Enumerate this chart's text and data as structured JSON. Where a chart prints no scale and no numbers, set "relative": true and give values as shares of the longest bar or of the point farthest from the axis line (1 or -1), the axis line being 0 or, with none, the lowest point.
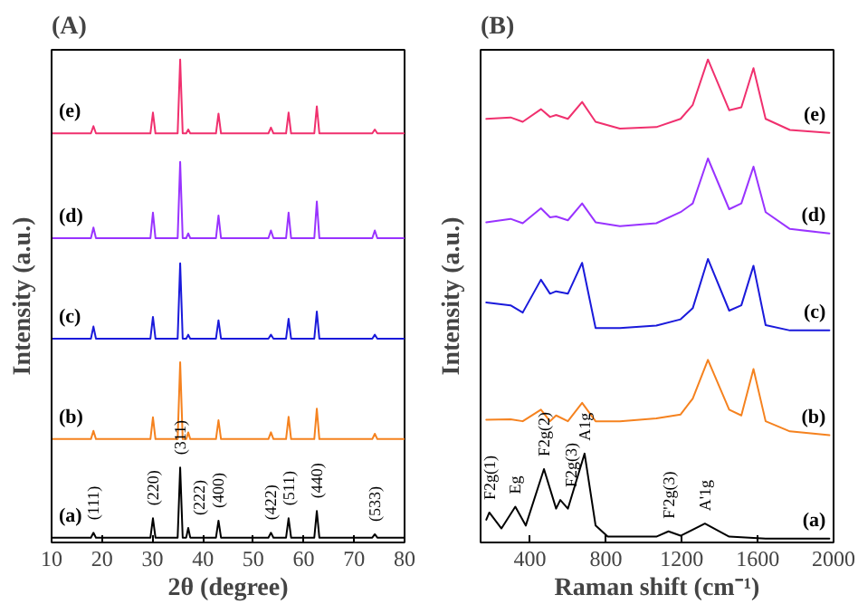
{
  "chart_data": [
    {
      "type": "line",
      "title": "(A)",
      "xlabel": "2θ (degree)",
      "ylabel": "Intensity (a.u.)",
      "relative": true,
      "xlim": [
        10,
        80
      ],
      "xticks": [
        10,
        20,
        30,
        40,
        50,
        60,
        70,
        80
      ],
      "grid": false,
      "legend": false,
      "marker": "none",
      "line_style": "solid",
      "x": [
        10,
        17.8,
        18.3,
        18.8,
        29.6,
        30.1,
        30.6,
        35,
        35.5,
        36,
        36.7,
        37.1,
        37.5,
        42.6,
        43.1,
        43.6,
        53,
        53.5,
        54,
        56.5,
        57,
        57.5,
        62.1,
        62.6,
        63.1,
        73.6,
        74.1,
        74.6,
        80
      ],
      "series": [
        {
          "name": "(a)",
          "color": "#000000",
          "values": [
            0.01,
            0.01,
            0.02,
            0.01,
            0.01,
            0.05,
            0.01,
            0.01,
            0.155,
            0.01,
            0.01,
            0.03,
            0.01,
            0.01,
            0.045,
            0.01,
            0.01,
            0.02,
            0.01,
            0.01,
            0.05,
            0.01,
            0.01,
            0.065,
            0.01,
            0.01,
            0.017,
            0.01,
            0.01
          ]
        },
        {
          "name": "(b)",
          "color": "#f5821f",
          "values": [
            0.214,
            0.214,
            0.231,
            0.214,
            0.214,
            0.259,
            0.214,
            0.214,
            0.373,
            0.214,
            0.214,
            0.228,
            0.214,
            0.214,
            0.253,
            0.214,
            0.214,
            0.228,
            0.214,
            0.214,
            0.26,
            0.214,
            0.214,
            0.277,
            0.214,
            0.214,
            0.225,
            0.214,
            0.214
          ]
        },
        {
          "name": "(c)",
          "color": "#1a1adb",
          "values": [
            0.422,
            0.422,
            0.447,
            0.422,
            0.422,
            0.467,
            0.422,
            0.422,
            0.578,
            0.422,
            0.422,
            0.43,
            0.422,
            0.422,
            0.46,
            0.422,
            0.422,
            0.43,
            0.422,
            0.422,
            0.463,
            0.422,
            0.422,
            0.478,
            0.422,
            0.422,
            0.43,
            0.422,
            0.422
          ]
        },
        {
          "name": "(d)",
          "color": "#9933ff",
          "values": [
            0.63,
            0.63,
            0.652,
            0.63,
            0.63,
            0.683,
            0.63,
            0.63,
            0.788,
            0.63,
            0.63,
            0.64,
            0.63,
            0.63,
            0.677,
            0.63,
            0.63,
            0.646,
            0.63,
            0.63,
            0.683,
            0.63,
            0.63,
            0.706,
            0.63,
            0.63,
            0.646,
            0.63,
            0.63
          ]
        },
        {
          "name": "(e)",
          "color": "#f0306e",
          "values": [
            0.847,
            0.847,
            0.862,
            0.847,
            0.847,
            0.89,
            0.847,
            0.847,
            1.0,
            0.847,
            0.847,
            0.855,
            0.847,
            0.847,
            0.888,
            0.847,
            0.847,
            0.859,
            0.847,
            0.847,
            0.89,
            0.847,
            0.847,
            0.903,
            0.847,
            0.847,
            0.855,
            0.847,
            0.847
          ]
        }
      ],
      "annotations": [
        {
          "text": "(111)",
          "x": 18.3,
          "y": 0.02
        },
        {
          "text": "(220)",
          "x": 30.1,
          "y": 0.05
        },
        {
          "text": "(311)",
          "x": 35.5,
          "y": 0.155
        },
        {
          "text": "(222)",
          "x": 37.1,
          "y": 0.03
        },
        {
          "text": "(400)",
          "x": 43.1,
          "y": 0.045
        },
        {
          "text": "(422)",
          "x": 53.5,
          "y": 0.02
        },
        {
          "text": "(511)",
          "x": 57,
          "y": 0.05
        },
        {
          "text": "(440)",
          "x": 62.6,
          "y": 0.065
        },
        {
          "text": "(533)",
          "x": 74.1,
          "y": 0.017
        }
      ]
    },
    {
      "type": "line",
      "title": "(B)",
      "xlabel": "Raman shift (cm⁻¹)",
      "ylabel": "Intensity (a.u.)",
      "relative": true,
      "xlim": [
        140,
        2000
      ],
      "xticks": [
        400,
        800,
        1200,
        1600,
        2000
      ],
      "grid": false,
      "legend": false,
      "marker": "none",
      "line_style": "solid",
      "x": [
        170,
        298,
        362,
        458,
        506,
        538,
        600,
        675,
        746,
        874,
        1066,
        1194,
        1258,
        1338,
        1450,
        1514,
        1578,
        1642,
        1770,
        1978
      ],
      "series": [
        {
          "name": "(a)",
          "color": "#000000",
          "x": [
            170,
            186,
            250,
            323,
            378,
            474,
            538,
            560,
            600,
            688,
            746,
            810,
            1066,
            1130,
            1194,
            1322,
            1450,
            1642,
            1978
          ],
          "values": [
            0.047,
            0.062,
            0.029,
            0.074,
            0.035,
            0.152,
            0.07,
            0.088,
            0.07,
            0.184,
            0.035,
            0.012,
            0.012,
            0.023,
            0.014,
            0.039,
            0.012,
            0.008,
            0.008
          ]
        },
        {
          "name": "(b)",
          "color": "#f5821f",
          "values": [
            0.254,
            0.255,
            0.251,
            0.275,
            0.251,
            0.263,
            0.251,
            0.289,
            0.251,
            0.251,
            0.257,
            0.265,
            0.298,
            0.378,
            0.275,
            0.263,
            0.359,
            0.251,
            0.23,
            0.222
          ]
        },
        {
          "name": "(c)",
          "color": "#1a1adb",
          "values": [
            0.497,
            0.491,
            0.476,
            0.544,
            0.515,
            0.52,
            0.515,
            0.579,
            0.444,
            0.444,
            0.449,
            0.462,
            0.485,
            0.587,
            0.48,
            0.491,
            0.573,
            0.45,
            0.439,
            0.439
          ]
        },
        {
          "name": "(d)",
          "color": "#9933ff",
          "values": [
            0.663,
            0.67,
            0.661,
            0.692,
            0.673,
            0.675,
            0.667,
            0.702,
            0.663,
            0.655,
            0.661,
            0.684,
            0.702,
            0.795,
            0.69,
            0.702,
            0.778,
            0.684,
            0.649,
            0.64
          ]
        },
        {
          "name": "(e)",
          "color": "#f0306e",
          "values": [
            0.877,
            0.88,
            0.871,
            0.897,
            0.881,
            0.885,
            0.877,
            0.912,
            0.871,
            0.857,
            0.86,
            0.877,
            0.906,
            1.0,
            0.895,
            0.901,
            0.982,
            0.877,
            0.854,
            0.848
          ]
        }
      ],
      "annotations": [
        {
          "text": "F2g(1)",
          "x": 186,
          "y": 0.062
        },
        {
          "text": "Eg",
          "x": 323,
          "y": 0.074
        },
        {
          "text": "F2g(2)",
          "x": 474,
          "y": 0.152
        },
        {
          "text": "F2g(3)",
          "x": 560,
          "y": 0.088
        },
        {
          "text": "A1g",
          "x": 688,
          "y": 0.184
        },
        {
          "text": "F'2g(3)",
          "x": 1130,
          "y": 0.023
        },
        {
          "text": "A'1g",
          "x": 1322,
          "y": 0.039
        }
      ]
    }
  ]
}
